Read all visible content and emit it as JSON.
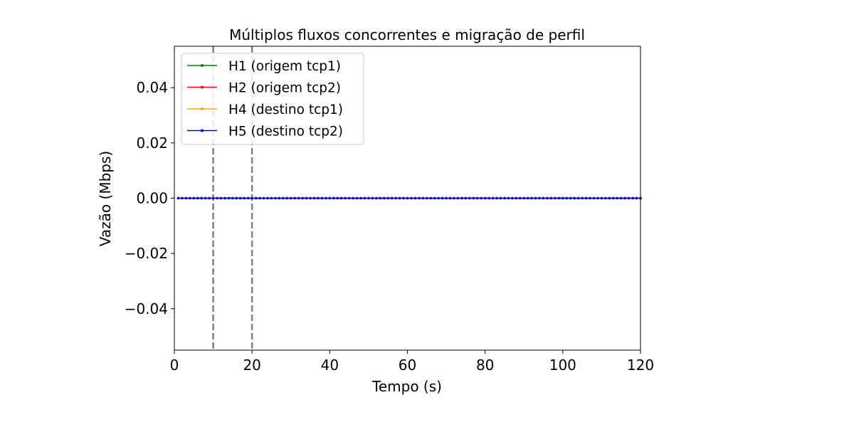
{
  "chart_data": {
    "type": "line",
    "title": "Múltiplos fluxos concorrentes e migração de perfil",
    "xlabel": "Tempo (s)",
    "ylabel": "Vazão (Mbps)",
    "xlim": [
      0,
      120
    ],
    "ylim": [
      -0.055,
      0.055
    ],
    "x_ticks": [
      0,
      20,
      40,
      60,
      80,
      100,
      120
    ],
    "y_ticks": [
      0.04,
      0.02,
      0.0,
      -0.02,
      -0.04
    ],
    "x_tick_labels": [
      "0",
      "20",
      "40",
      "60",
      "80",
      "100",
      "120"
    ],
    "y_tick_labels": [
      "0.04",
      "0.02",
      "0.00",
      "−0.02",
      "−0.04"
    ],
    "x": [
      1,
      2,
      3,
      4,
      5,
      6,
      7,
      8,
      9,
      10,
      11,
      12,
      13,
      14,
      15,
      16,
      17,
      18,
      19,
      20,
      21,
      22,
      23,
      24,
      25,
      26,
      27,
      28,
      29,
      30,
      31,
      32,
      33,
      34,
      35,
      36,
      37,
      38,
      39,
      40,
      41,
      42,
      43,
      44,
      45,
      46,
      47,
      48,
      49,
      50,
      51,
      52,
      53,
      54,
      55,
      56,
      57,
      58,
      59,
      60,
      61,
      62,
      63,
      64,
      65,
      66,
      67,
      68,
      69,
      70,
      71,
      72,
      73,
      74,
      75,
      76,
      77,
      78,
      79,
      80,
      81,
      82,
      83,
      84,
      85,
      86,
      87,
      88,
      89,
      90,
      91,
      92,
      93,
      94,
      95,
      96,
      97,
      98,
      99,
      100,
      101,
      102,
      103,
      104,
      105,
      106,
      107,
      108,
      109,
      110,
      111,
      112,
      113,
      114,
      115,
      116,
      117,
      118,
      119,
      120
    ],
    "series": [
      {
        "name": "H1 (origem tcp1)",
        "color": "#008000",
        "constant_value": 0.0
      },
      {
        "name": "H2 (origem tcp2)",
        "color": "#ff0000",
        "constant_value": 0.0
      },
      {
        "name": "H4 (destino tcp1)",
        "color": "#ffa500",
        "constant_value": 0.0
      },
      {
        "name": "H5 (destino tcp2)",
        "color": "#0000ff",
        "constant_value": 0.0
      }
    ],
    "vlines": [
      {
        "x": 10,
        "style": "dashed",
        "color": "#808080"
      },
      {
        "x": 20,
        "style": "dashed",
        "color": "#808080"
      }
    ],
    "legend_position": "top-left",
    "grid": false
  }
}
